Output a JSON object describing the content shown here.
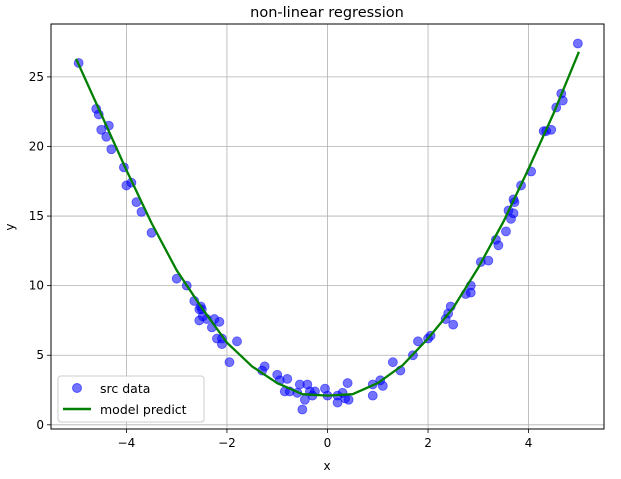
{
  "chart_data": {
    "type": "scatter",
    "title": "non-linear regression",
    "xlabel": "x",
    "ylabel": "y",
    "xlim": [
      -5.5,
      5.5
    ],
    "ylim": [
      -0.3,
      28.8
    ],
    "xticks": [
      -4,
      -2,
      0,
      2,
      4
    ],
    "yticks": [
      0,
      5,
      10,
      15,
      20,
      25
    ],
    "grid": true,
    "legend_position": "lower-left",
    "series": [
      {
        "name": "src data",
        "kind": "scatter",
        "color": "#0000ff",
        "alpha": 0.55,
        "points": [
          [
            -4.95,
            26.0
          ],
          [
            -4.6,
            22.7
          ],
          [
            -4.55,
            22.3
          ],
          [
            -4.5,
            21.2
          ],
          [
            -4.4,
            20.7
          ],
          [
            -4.35,
            21.5
          ],
          [
            -4.3,
            19.8
          ],
          [
            -4.05,
            18.5
          ],
          [
            -4.0,
            17.2
          ],
          [
            -3.9,
            17.4
          ],
          [
            -3.8,
            16.0
          ],
          [
            -3.7,
            15.3
          ],
          [
            -3.5,
            13.8
          ],
          [
            -3.0,
            10.5
          ],
          [
            -2.8,
            10.0
          ],
          [
            -2.65,
            8.9
          ],
          [
            -2.55,
            8.3
          ],
          [
            -2.52,
            8.5
          ],
          [
            -2.5,
            8.3
          ],
          [
            -2.48,
            7.8
          ],
          [
            -2.55,
            7.5
          ],
          [
            -2.4,
            7.6
          ],
          [
            -2.3,
            7.0
          ],
          [
            -2.25,
            7.6
          ],
          [
            -2.15,
            7.4
          ],
          [
            -2.2,
            6.2
          ],
          [
            -2.1,
            6.2
          ],
          [
            -2.1,
            5.8
          ],
          [
            -1.95,
            4.5
          ],
          [
            -1.8,
            6.0
          ],
          [
            -1.3,
            3.9
          ],
          [
            -1.25,
            4.2
          ],
          [
            -1.0,
            3.6
          ],
          [
            -0.95,
            3.2
          ],
          [
            -0.85,
            2.4
          ],
          [
            -0.8,
            3.3
          ],
          [
            -0.75,
            2.4
          ],
          [
            -0.6,
            2.3
          ],
          [
            -0.55,
            2.9
          ],
          [
            -0.5,
            1.1
          ],
          [
            -0.45,
            1.8
          ],
          [
            -0.4,
            2.9
          ],
          [
            -0.35,
            2.4
          ],
          [
            -0.3,
            2.1
          ],
          [
            -0.25,
            2.4
          ],
          [
            -0.05,
            2.6
          ],
          [
            0.0,
            2.1
          ],
          [
            0.2,
            2.1
          ],
          [
            0.2,
            1.6
          ],
          [
            0.3,
            2.3
          ],
          [
            0.35,
            1.9
          ],
          [
            0.4,
            3.0
          ],
          [
            0.42,
            1.8
          ],
          [
            0.9,
            2.9
          ],
          [
            0.9,
            2.1
          ],
          [
            1.05,
            3.2
          ],
          [
            1.1,
            2.8
          ],
          [
            1.3,
            4.5
          ],
          [
            1.45,
            3.9
          ],
          [
            1.7,
            5.0
          ],
          [
            1.8,
            6.0
          ],
          [
            2.0,
            6.2
          ],
          [
            2.05,
            6.4
          ],
          [
            2.35,
            7.6
          ],
          [
            2.4,
            8.0
          ],
          [
            2.45,
            8.5
          ],
          [
            2.5,
            7.2
          ],
          [
            2.75,
            9.4
          ],
          [
            2.85,
            9.5
          ],
          [
            2.85,
            10.0
          ],
          [
            3.05,
            11.7
          ],
          [
            3.2,
            11.8
          ],
          [
            3.35,
            13.3
          ],
          [
            3.4,
            12.9
          ],
          [
            3.55,
            13.9
          ],
          [
            3.6,
            15.4
          ],
          [
            3.65,
            14.8
          ],
          [
            3.7,
            15.2
          ],
          [
            3.7,
            16.2
          ],
          [
            3.72,
            16.0
          ],
          [
            3.85,
            17.2
          ],
          [
            4.05,
            18.2
          ],
          [
            4.3,
            21.1
          ],
          [
            4.35,
            21.1
          ],
          [
            4.45,
            21.2
          ],
          [
            4.55,
            22.8
          ],
          [
            4.65,
            23.8
          ],
          [
            4.68,
            23.3
          ],
          [
            4.98,
            27.4
          ]
        ]
      },
      {
        "name": "model predict",
        "kind": "line",
        "color": "#008000",
        "points": [
          [
            -5.0,
            26.3
          ],
          [
            -4.5,
            22.3
          ],
          [
            -4.0,
            18.3
          ],
          [
            -3.5,
            14.5
          ],
          [
            -3.0,
            11.1
          ],
          [
            -2.5,
            8.4
          ],
          [
            -2.0,
            5.9
          ],
          [
            -1.5,
            4.2
          ],
          [
            -1.0,
            3.0
          ],
          [
            -0.5,
            2.2
          ],
          [
            0.0,
            2.1
          ],
          [
            0.5,
            2.2
          ],
          [
            1.0,
            3.0
          ],
          [
            1.5,
            4.3
          ],
          [
            2.0,
            6.2
          ],
          [
            2.5,
            8.4
          ],
          [
            3.0,
            11.3
          ],
          [
            3.5,
            14.6
          ],
          [
            4.0,
            18.4
          ],
          [
            4.5,
            22.4
          ],
          [
            5.0,
            26.8
          ]
        ]
      }
    ]
  }
}
